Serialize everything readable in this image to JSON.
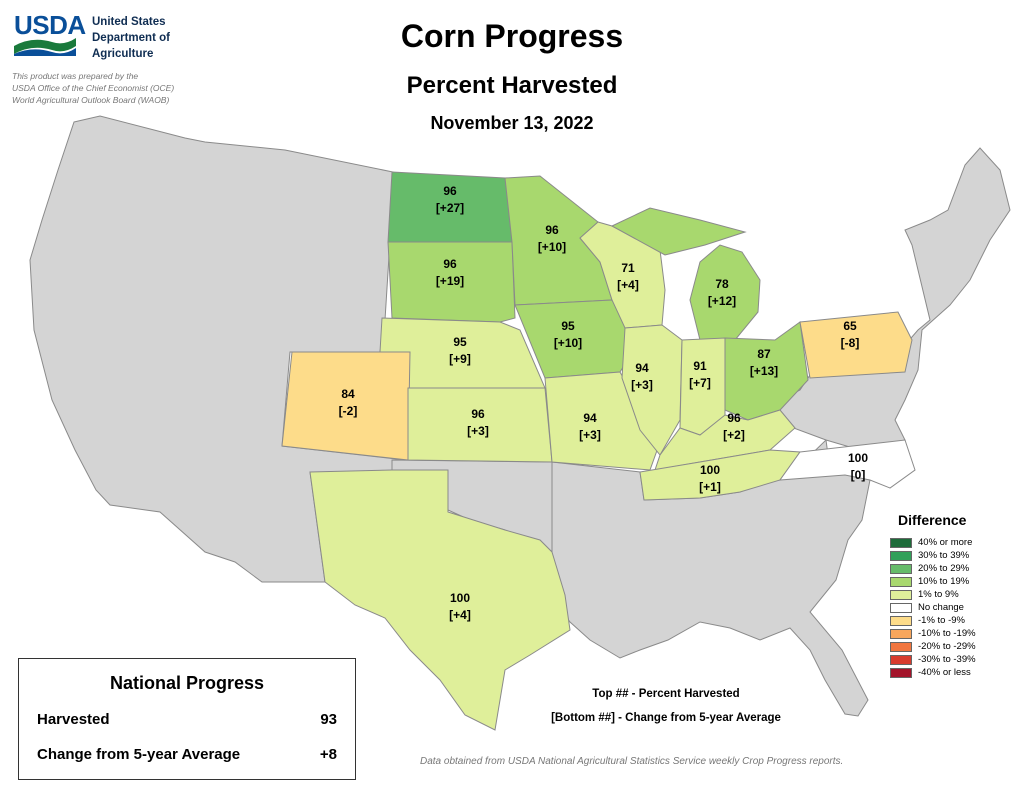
{
  "header": {
    "logo_text": "USDA",
    "department_lines": [
      "United States",
      "Department of",
      "Agriculture"
    ],
    "credit_lines": [
      "This product was prepared by the",
      "USDA Office of the Chief Economist (OCE)",
      "World Agricultural Outlook Board (WAOB)"
    ],
    "title": "Corn Progress",
    "subtitle": "Percent Harvested",
    "date": "November 13, 2022"
  },
  "colors": {
    "no_data": "#d4d4d4",
    "border": "#8a8a8a",
    "ge40": "#1e6b3a",
    "c30_39": "#32a05a",
    "c20_29": "#66bb6a",
    "c10_19": "#a8d86e",
    "c1_9": "#dfef9a",
    "no_change": "#ffffff",
    "n1_9": "#fddc8a",
    "n10_19": "#f7a65c",
    "n20_29": "#f1763f",
    "n30_39": "#d73b2e",
    "le40": "#a3142a"
  },
  "states": [
    {
      "name": "North Dakota",
      "value": "96",
      "change": "[+27]",
      "class": "c20_29"
    },
    {
      "name": "South Dakota",
      "value": "96",
      "change": "[+19]",
      "class": "c10_19"
    },
    {
      "name": "Minnesota",
      "value": "96",
      "change": "[+10]",
      "class": "c10_19"
    },
    {
      "name": "Nebraska",
      "value": "95",
      "change": "[+9]",
      "class": "c1_9"
    },
    {
      "name": "Iowa",
      "value": "95",
      "change": "[+10]",
      "class": "c10_19"
    },
    {
      "name": "Wisconsin",
      "value": "71",
      "change": "[+4]",
      "class": "c1_9"
    },
    {
      "name": "Michigan",
      "value": "78",
      "change": "[+12]",
      "class": "c10_19"
    },
    {
      "name": "Colorado",
      "value": "84",
      "change": "[-2]",
      "class": "n1_9"
    },
    {
      "name": "Kansas",
      "value": "96",
      "change": "[+3]",
      "class": "c1_9"
    },
    {
      "name": "Missouri",
      "value": "94",
      "change": "[+3]",
      "class": "c1_9"
    },
    {
      "name": "Illinois",
      "value": "94",
      "change": "[+3]",
      "class": "c1_9"
    },
    {
      "name": "Indiana",
      "value": "91",
      "change": "[+7]",
      "class": "c1_9"
    },
    {
      "name": "Ohio",
      "value": "87",
      "change": "[+13]",
      "class": "c10_19"
    },
    {
      "name": "Pennsylvania",
      "value": "65",
      "change": "[-8]",
      "class": "n1_9"
    },
    {
      "name": "Kentucky",
      "value": "96",
      "change": "[+2]",
      "class": "c1_9"
    },
    {
      "name": "Tennessee",
      "value": "100",
      "change": "[+1]",
      "class": "c1_9"
    },
    {
      "name": "North Carolina",
      "value": "100",
      "change": "[0]",
      "class": "no_change"
    },
    {
      "name": "Texas",
      "value": "100",
      "change": "[+4]",
      "class": "c1_9"
    }
  ],
  "legend": {
    "title": "Difference",
    "items": [
      {
        "label": "40% or more",
        "class": "ge40"
      },
      {
        "label": "30% to 39%",
        "class": "c30_39"
      },
      {
        "label": "20% to 29%",
        "class": "c20_29"
      },
      {
        "label": "10% to 19%",
        "class": "c10_19"
      },
      {
        "label": "1% to 9%",
        "class": "c1_9"
      },
      {
        "label": "No change",
        "class": "no_change"
      },
      {
        "label": "-1% to -9%",
        "class": "n1_9"
      },
      {
        "label": "-10% to -19%",
        "class": "n10_19"
      },
      {
        "label": "-20% to -29%",
        "class": "n20_29"
      },
      {
        "label": "-30% to -39%",
        "class": "n30_39"
      },
      {
        "label": "-40% or less",
        "class": "le40"
      }
    ]
  },
  "national": {
    "title": "National Progress",
    "harvested_label": "Harvested",
    "harvested_value": "93",
    "change_label": "Change from 5-year Average",
    "change_value": "+8"
  },
  "key": {
    "top": "Top ## - Percent Harvested",
    "bottom": "[Bottom ##] - Change from 5-year Average"
  },
  "source": "Data obtained from USDA National Agricultural Statistics Service weekly Crop Progress reports."
}
